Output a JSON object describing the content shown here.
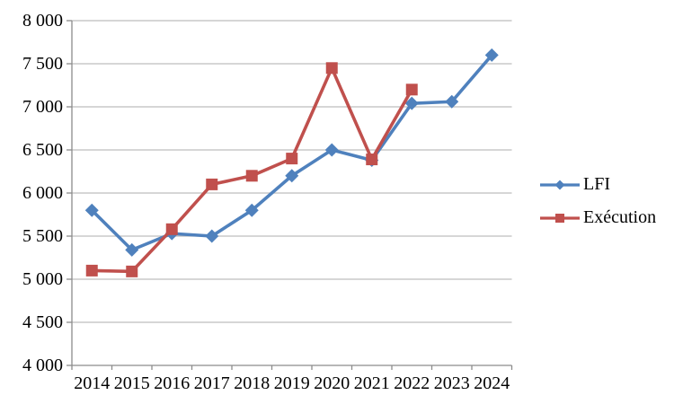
{
  "chart_data": {
    "type": "line",
    "title": "",
    "categories": [
      "2014",
      "2015",
      "2016",
      "2017",
      "2018",
      "2019",
      "2020",
      "2021",
      "2022",
      "2023",
      "2024"
    ],
    "series": [
      {
        "name": "LFI",
        "marker": "diamond",
        "color": "#4F81BD",
        "values": [
          5800,
          5340,
          5530,
          5500,
          5800,
          6200,
          6500,
          6380,
          7040,
          7060,
          7600
        ]
      },
      {
        "name": "Exécution",
        "marker": "square",
        "color": "#C0504D",
        "values": [
          5100,
          5090,
          5580,
          6100,
          6200,
          6400,
          7450,
          6390,
          7200,
          null,
          null
        ]
      }
    ],
    "ylim": [
      4000,
      8000
    ],
    "y_step": 500,
    "y_tick_labels": [
      "4 000",
      "4 500",
      "5 000",
      "5 500",
      "6 000",
      "6 500",
      "7 000",
      "7 500",
      "8 000"
    ],
    "grid": true,
    "legend_position": "right-middle",
    "styles": {
      "grid_color": "#BDBDBD",
      "axis_color": "#8C8C8C",
      "text_color": "#000000",
      "background": "#FFFFFF"
    }
  }
}
